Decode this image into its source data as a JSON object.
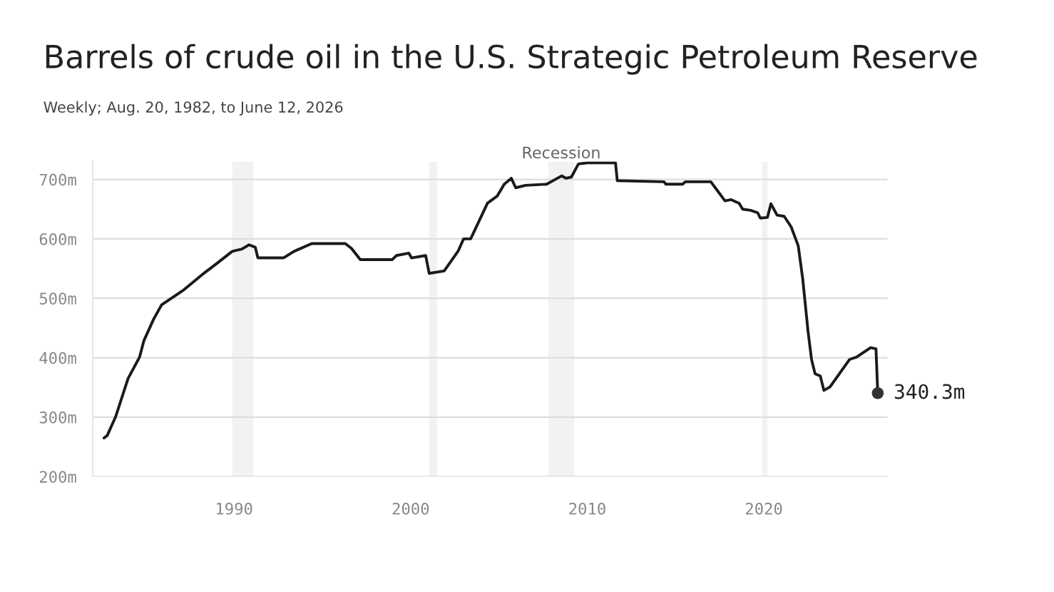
{
  "chart_data": {
    "type": "line",
    "title": "Barrels of crude oil in the U.S. Strategic Petroleum Reserve",
    "subtitle": "Weekly; Aug. 20, 1982, to June 12, 2026",
    "series": [
      {
        "color": "#1a1a1a",
        "x": [
          1982.64,
          1982.82,
          1983.3,
          1984.0,
          1984.65,
          1984.9,
          1985.45,
          1985.9,
          1987.1,
          1988.2,
          1989.0,
          1989.9,
          1990.45,
          1990.85,
          1991.2,
          1991.35,
          1992.8,
          1993.4,
          1994.4,
          1996.3,
          1996.65,
          1997.15,
          1998.95,
          1999.2,
          1999.9,
          2000.05,
          2000.85,
          2001.05,
          2001.9,
          2002.7,
          2003.0,
          2003.4,
          2004.35,
          2004.9,
          2005.3,
          2005.7,
          2005.95,
          2006.5,
          2007.7,
          2008.55,
          2008.8,
          2009.1,
          2009.5,
          2010.0,
          2011.6,
          2011.7,
          2014.35,
          2014.45,
          2015.4,
          2015.55,
          2017.0,
          2017.4,
          2017.8,
          2018.15,
          2018.6,
          2018.8,
          2019.25,
          2019.65,
          2019.8,
          2020.2,
          2020.4,
          2020.75,
          2021.15,
          2021.55,
          2021.95,
          2022.2,
          2022.5,
          2022.7,
          2022.9,
          2023.2,
          2023.4,
          2023.75,
          2024.85,
          2025.25,
          2026.05,
          2026.35,
          2026.45
        ],
        "values": [
          265,
          269,
          301,
          365,
          401,
          429,
          465,
          489,
          513,
          540,
          558,
          579,
          583,
          590,
          586,
          568,
          568,
          579,
          592,
          592,
          584,
          565,
          565,
          572,
          576,
          568,
          572,
          542,
          546,
          580,
          600,
          600,
          660,
          672,
          692,
          702,
          686,
          690,
          692,
          706,
          702,
          704,
          726,
          728,
          728,
          698,
          696,
          692,
          692,
          696,
          696,
          680,
          664,
          666,
          660,
          650,
          648,
          644,
          635,
          636,
          659,
          640,
          638,
          620,
          588,
          533,
          445,
          397,
          373,
          369,
          345,
          351,
          397,
          401,
          417,
          415,
          340.3
        ]
      }
    ],
    "xlim": [
      1982,
      2027
    ],
    "xticks": [
      1990,
      2000,
      2010,
      2020
    ],
    "yticks": [
      {
        "value": 200,
        "label": "200m"
      },
      {
        "value": 300,
        "label": "300m"
      },
      {
        "value": 400,
        "label": "400m"
      },
      {
        "value": 500,
        "label": "500m"
      },
      {
        "value": 600,
        "label": "600m"
      },
      {
        "value": 700,
        "label": "700m"
      }
    ],
    "ylim": [
      200,
      730
    ],
    "grid": "y",
    "bands": [
      {
        "axis": "x",
        "from": 1989.9,
        "to": 1991.1,
        "color": "#f2f2f2"
      },
      {
        "axis": "x",
        "from": 2001.05,
        "to": 2001.5,
        "color": "#f2f2f2"
      },
      {
        "axis": "x",
        "from": 2007.8,
        "to": 2009.25,
        "color": "#f2f2f2",
        "label": "Recession"
      },
      {
        "axis": "x",
        "from": 2019.9,
        "to": 2020.2,
        "color": "#f2f2f2"
      }
    ],
    "annotations": [
      {
        "text": "340.3m",
        "x": 2026.45,
        "y": 340.3
      }
    ]
  }
}
